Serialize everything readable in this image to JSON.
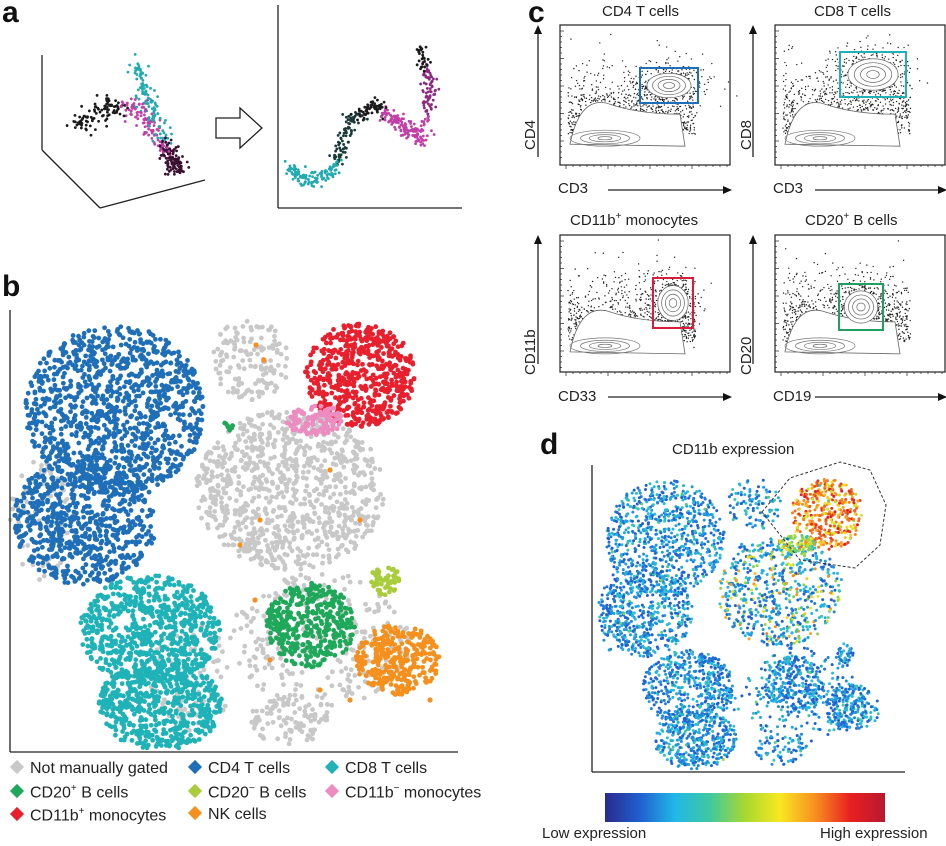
{
  "panels": {
    "a": "a",
    "b": "b",
    "c": "c",
    "d": "d"
  },
  "colors": {
    "not_gated": "#c8c8c8",
    "cd4": "#1f6fb8",
    "cd8": "#1fb3b8",
    "cd20pos": "#1fa85a",
    "cd20neg": "#a8cc3a",
    "cd11bneg": "#ec8cc0",
    "cd11bpos": "#e8202e",
    "nk": "#f5901e",
    "gate_cd4": "#1f6fb8",
    "gate_cd8": "#22b0b8",
    "gate_cd11b": "#d81e3c",
    "gate_cd20": "#1fa060"
  },
  "chart_data": [
    {
      "panel": "a",
      "type": "scatter",
      "title": "",
      "description_mark": "arrow"
    },
    {
      "panel": "b",
      "type": "scatter",
      "legend": [
        {
          "label": "Not manually gated",
          "key": "not_gated"
        },
        {
          "label": "CD4 T cells",
          "key": "cd4"
        },
        {
          "label": "CD8 T cells",
          "key": "cd8"
        },
        {
          "label": "CD20",
          "sup": "+",
          "rest": " B cells",
          "key": "cd20pos"
        },
        {
          "label": "CD20",
          "sup": "−",
          "rest": " B cells",
          "key": "cd20neg"
        },
        {
          "label": "CD11b",
          "sup": "−",
          "rest": " monocytes",
          "key": "cd11bneg"
        },
        {
          "label": "CD11b",
          "sup": "+",
          "rest": " monocytes",
          "key": "cd11bpos"
        },
        {
          "label": "NK cells",
          "key": "nk"
        }
      ],
      "legend_position": "bottom"
    },
    {
      "panel": "c",
      "type": "scatter",
      "plots": [
        {
          "title": "CD4 T cells",
          "xlabel": "CD3",
          "ylabel": "CD4"
        },
        {
          "title": "CD8 T cells",
          "xlabel": "CD3",
          "ylabel": "CD8"
        },
        {
          "title": "CD11b",
          "title_sup": "+",
          "title_rest": " monocytes",
          "xlabel": "CD33",
          "ylabel": "CD11b"
        },
        {
          "title": "CD20",
          "title_sup": "+",
          "title_rest": " B cells",
          "xlabel": "CD19",
          "ylabel": "CD20"
        }
      ]
    },
    {
      "panel": "d",
      "type": "scatter",
      "title": "CD11b expression",
      "colorbar": {
        "low": "Low expression",
        "high": "High expression",
        "colormap": "jet"
      }
    }
  ]
}
